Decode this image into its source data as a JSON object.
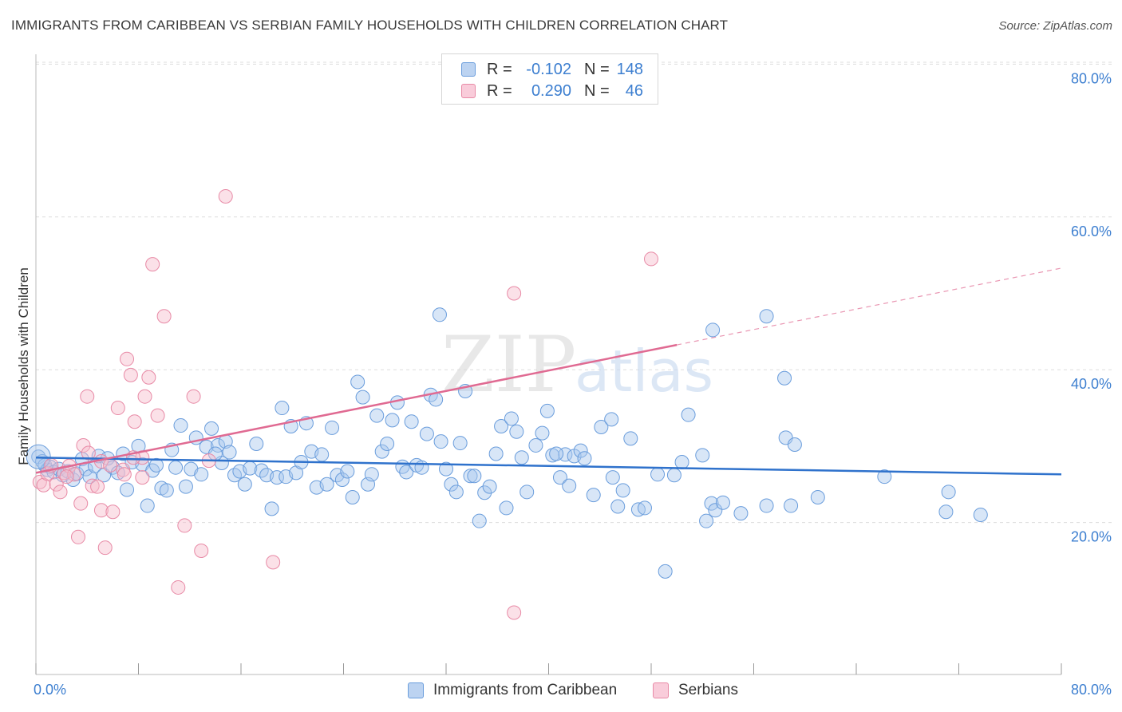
{
  "title": "IMMIGRANTS FROM CARIBBEAN VS SERBIAN FAMILY HOUSEHOLDS WITH CHILDREN CORRELATION CHART",
  "source": "Source: ZipAtlas.com",
  "watermark": {
    "zip": "ZIP",
    "atlas": "atlas"
  },
  "legend": {
    "rows": [
      {
        "r_label": "R =",
        "r_value": "-0.102",
        "n_label": "N =",
        "n_value": "148"
      },
      {
        "r_label": "R =",
        "r_value": "0.290",
        "n_label": "N =",
        "n_value": "46"
      }
    ]
  },
  "bottom_legend": [
    "Immigrants from Caribbean",
    "Serbians"
  ],
  "colors": {
    "blue_fill": "#a9c8ee",
    "blue_stroke": "#6a9ddc",
    "blue_line": "#2f72cc",
    "pink_fill": "#f7bccd",
    "pink_stroke": "#e88aa6",
    "pink_line": "#e06a92",
    "axis_text": "#3d7fd0",
    "grid": "#dddddd"
  },
  "chart_data": {
    "type": "scatter",
    "title": "IMMIGRANTS FROM CARIBBEAN VS SERBIAN FAMILY HOUSEHOLDS WITH CHILDREN CORRELATION CHART",
    "xlabel": "",
    "ylabel": "Family Households with Children",
    "xlim": [
      0,
      80
    ],
    "ylim": [
      0,
      82
    ],
    "x_tick_labels": [
      "0.0%",
      "80.0%"
    ],
    "y_ticks": [
      20,
      40,
      60,
      80
    ],
    "y_tick_labels": [
      "20.0%",
      "40.0%",
      "60.0%",
      "80.0%"
    ],
    "grid": true,
    "series": [
      {
        "name": "Immigrants from Caribbean",
        "r": -0.102,
        "n": 148,
        "trend": {
          "x0": 0,
          "y0": 28.5,
          "x1": 80,
          "y1": 26.3
        },
        "points": [
          [
            0.2,
            28.6
          ],
          [
            0.5,
            28.0
          ],
          [
            0.7,
            27.5
          ],
          [
            0.9,
            26.9
          ],
          [
            1.1,
            27.3
          ],
          [
            1.4,
            26.6
          ],
          [
            1.8,
            27.0
          ],
          [
            2.1,
            26.2
          ],
          [
            2.5,
            26.7
          ],
          [
            2.9,
            25.6
          ],
          [
            3.2,
            26.4
          ],
          [
            3.6,
            28.3
          ],
          [
            3.9,
            27.0
          ],
          [
            4.2,
            26.0
          ],
          [
            4.6,
            27.4
          ],
          [
            4.9,
            28.7
          ],
          [
            5.3,
            26.2
          ],
          [
            5.6,
            28.4
          ],
          [
            6.0,
            27.2
          ],
          [
            6.4,
            26.5
          ],
          [
            6.8,
            29.0
          ],
          [
            7.1,
            24.3
          ],
          [
            7.5,
            27.9
          ],
          [
            8.0,
            30.0
          ],
          [
            8.3,
            27.6
          ],
          [
            8.7,
            22.2
          ],
          [
            9.1,
            26.8
          ],
          [
            9.4,
            27.5
          ],
          [
            9.8,
            24.5
          ],
          [
            10.2,
            24.2
          ],
          [
            10.6,
            29.5
          ],
          [
            10.9,
            27.2
          ],
          [
            11.3,
            32.7
          ],
          [
            11.7,
            24.7
          ],
          [
            12.1,
            27.0
          ],
          [
            12.5,
            31.1
          ],
          [
            12.9,
            26.3
          ],
          [
            13.3,
            29.9
          ],
          [
            13.7,
            32.3
          ],
          [
            14.2,
            30.1
          ],
          [
            14.5,
            27.8
          ],
          [
            14.8,
            30.6
          ],
          [
            15.1,
            29.2
          ],
          [
            15.5,
            26.2
          ],
          [
            15.9,
            26.7
          ],
          [
            16.3,
            25.0
          ],
          [
            16.7,
            27.1
          ],
          [
            17.2,
            30.3
          ],
          [
            17.6,
            26.8
          ],
          [
            18.0,
            26.2
          ],
          [
            18.4,
            21.8
          ],
          [
            18.8,
            25.9
          ],
          [
            19.2,
            35.0
          ],
          [
            19.5,
            26.0
          ],
          [
            19.9,
            32.6
          ],
          [
            20.3,
            26.5
          ],
          [
            20.7,
            27.9
          ],
          [
            21.1,
            33.0
          ],
          [
            21.5,
            29.3
          ],
          [
            21.9,
            24.6
          ],
          [
            22.3,
            28.9
          ],
          [
            22.7,
            25.0
          ],
          [
            23.1,
            32.4
          ],
          [
            23.5,
            26.2
          ],
          [
            23.9,
            25.6
          ],
          [
            24.3,
            26.7
          ],
          [
            24.7,
            23.3
          ],
          [
            25.1,
            38.4
          ],
          [
            25.5,
            36.4
          ],
          [
            25.9,
            25.0
          ],
          [
            26.2,
            26.3
          ],
          [
            26.6,
            34.0
          ],
          [
            27.0,
            29.3
          ],
          [
            27.4,
            30.3
          ],
          [
            27.8,
            33.4
          ],
          [
            28.2,
            35.7
          ],
          [
            28.6,
            27.3
          ],
          [
            28.9,
            26.6
          ],
          [
            29.3,
            33.2
          ],
          [
            29.7,
            27.5
          ],
          [
            30.1,
            27.2
          ],
          [
            30.5,
            31.6
          ],
          [
            30.8,
            36.7
          ],
          [
            31.2,
            36.1
          ],
          [
            31.6,
            30.6
          ],
          [
            32.0,
            27.0
          ],
          [
            32.4,
            25.0
          ],
          [
            32.8,
            24.0
          ],
          [
            33.1,
            30.4
          ],
          [
            33.5,
            37.2
          ],
          [
            33.9,
            26.1
          ],
          [
            34.2,
            26.1
          ],
          [
            34.6,
            20.2
          ],
          [
            35.0,
            23.9
          ],
          [
            35.4,
            24.7
          ],
          [
            35.9,
            29.0
          ],
          [
            36.3,
            32.6
          ],
          [
            36.7,
            21.9
          ],
          [
            37.1,
            33.6
          ],
          [
            37.5,
            31.9
          ],
          [
            37.9,
            28.5
          ],
          [
            38.3,
            24.0
          ],
          [
            39.0,
            30.1
          ],
          [
            39.5,
            31.7
          ],
          [
            39.9,
            34.6
          ],
          [
            40.3,
            28.8
          ],
          [
            40.9,
            25.9
          ],
          [
            41.3,
            28.9
          ],
          [
            41.6,
            24.8
          ],
          [
            42.0,
            28.7
          ],
          [
            42.5,
            29.4
          ],
          [
            42.8,
            28.4
          ],
          [
            43.5,
            23.6
          ],
          [
            44.1,
            32.5
          ],
          [
            44.9,
            33.5
          ],
          [
            45.0,
            25.9
          ],
          [
            45.4,
            22.1
          ],
          [
            45.8,
            24.2
          ],
          [
            46.4,
            31.0
          ],
          [
            47.0,
            21.7
          ],
          [
            47.5,
            21.9
          ],
          [
            48.5,
            26.3
          ],
          [
            49.1,
            13.6
          ],
          [
            49.8,
            26.2
          ],
          [
            50.4,
            27.9
          ],
          [
            50.9,
            34.1
          ],
          [
            52.0,
            28.8
          ],
          [
            52.3,
            20.2
          ],
          [
            52.7,
            22.5
          ],
          [
            53.0,
            21.6
          ],
          [
            53.6,
            22.6
          ],
          [
            55.0,
            21.2
          ],
          [
            57.0,
            22.2
          ],
          [
            58.5,
            31.1
          ],
          [
            58.9,
            22.2
          ],
          [
            59.2,
            30.2
          ],
          [
            61.0,
            23.3
          ],
          [
            66.2,
            26.0
          ],
          [
            71.0,
            21.4
          ],
          [
            71.2,
            24.0
          ],
          [
            73.7,
            21.0
          ],
          [
            57.0,
            47.0
          ],
          [
            58.4,
            38.9
          ],
          [
            52.8,
            45.2
          ],
          [
            31.5,
            47.2
          ],
          [
            40.6,
            29.0
          ],
          [
            14.0,
            29.0
          ]
        ]
      },
      {
        "name": "Serbians",
        "r": 0.29,
        "n": 46,
        "trend": {
          "x0": 0,
          "y0": 26.5,
          "x1": 80,
          "y1": 53.3,
          "solid_until": 50
        },
        "points": [
          [
            0.3,
            25.3
          ],
          [
            0.6,
            24.9
          ],
          [
            0.9,
            26.4
          ],
          [
            1.2,
            27.5
          ],
          [
            1.6,
            25.0
          ],
          [
            1.9,
            24.0
          ],
          [
            2.2,
            26.5
          ],
          [
            2.6,
            27.4
          ],
          [
            3.0,
            26.3
          ],
          [
            3.3,
            18.1
          ],
          [
            3.5,
            22.5
          ],
          [
            3.7,
            30.1
          ],
          [
            4.1,
            29.1
          ],
          [
            4.4,
            24.8
          ],
          [
            4.8,
            24.7
          ],
          [
            5.1,
            28.0
          ],
          [
            5.1,
            21.6
          ],
          [
            5.4,
            16.7
          ],
          [
            5.8,
            27.5
          ],
          [
            6.0,
            21.4
          ],
          [
            6.4,
            35.0
          ],
          [
            6.8,
            26.9
          ],
          [
            7.1,
            41.4
          ],
          [
            7.4,
            39.3
          ],
          [
            7.7,
            33.2
          ],
          [
            8.3,
            28.5
          ],
          [
            8.5,
            36.5
          ],
          [
            8.8,
            39.0
          ],
          [
            9.1,
            53.8
          ],
          [
            9.5,
            34.0
          ],
          [
            10.0,
            47.0
          ],
          [
            11.1,
            11.5
          ],
          [
            11.6,
            19.6
          ],
          [
            12.3,
            36.5
          ],
          [
            12.9,
            16.3
          ],
          [
            14.8,
            62.7
          ],
          [
            18.5,
            14.8
          ],
          [
            37.3,
            50.0
          ],
          [
            37.3,
            8.2
          ],
          [
            48.0,
            54.5
          ],
          [
            4.0,
            36.5
          ],
          [
            2.4,
            26.0
          ],
          [
            6.9,
            26.3
          ],
          [
            8.3,
            25.9
          ],
          [
            13.5,
            28.1
          ],
          [
            7.6,
            28.5
          ]
        ]
      }
    ]
  }
}
